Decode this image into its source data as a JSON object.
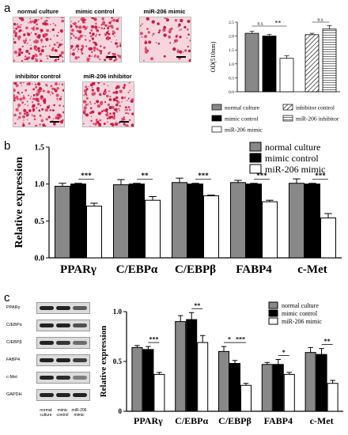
{
  "panel_a": {
    "letter": "a",
    "images": [
      {
        "label": "normal culture"
      },
      {
        "label": "mimic control"
      },
      {
        "label": "miR-206 mimic"
      },
      {
        "label": "inhibitor control"
      },
      {
        "label": "miR-206 inhibitor"
      }
    ],
    "legend": [
      {
        "label": "normal culture",
        "pattern": "gray"
      },
      {
        "label": "inhibitor control",
        "pattern": "diag"
      },
      {
        "label": "mimic control",
        "pattern": "black"
      },
      {
        "label": "miR-206 inhibitor",
        "pattern": "hlines"
      },
      {
        "label": "miR-206 mimic",
        "pattern": "white"
      }
    ]
  },
  "panel_b": {
    "letter": "b"
  },
  "panel_c": {
    "letter": "c",
    "blot_rows": [
      "PPARγ",
      "C/EBPα",
      "C/EBPβ",
      "FABP4",
      "c-Met",
      "GAPDH"
    ],
    "lanes": [
      "normal culture",
      "mimic control",
      "miR-206 mimic"
    ]
  },
  "colors": {
    "gray": "#888888",
    "black": "#000000",
    "white": "#ffffff"
  },
  "chart_data": [
    {
      "type": "bar",
      "panel": "a",
      "categories": [
        "normal culture",
        "mimic control",
        "miR-206 mimic",
        "inhibitor control",
        "miR-206 inhibitor"
      ],
      "values": [
        2.1,
        2.0,
        1.2,
        2.05,
        2.25
      ],
      "errors": [
        0.07,
        0.06,
        0.09,
        0.05,
        0.12
      ],
      "ylabel": "OD(510nm)",
      "ylim": [
        0,
        2.5
      ],
      "yticks": [
        "0.0",
        "0.5",
        "1.0",
        "1.5",
        "2.0",
        "2.5"
      ],
      "annotations": [
        {
          "text": "n.s."
        },
        {
          "text": "**"
        },
        {
          "text": "n.s."
        }
      ]
    },
    {
      "type": "bar",
      "panel": "b",
      "categories": [
        "PPARγ",
        "C/EBPα",
        "C/EBPβ",
        "FABP4",
        "c-Met"
      ],
      "series": [
        {
          "name": "normal culture",
          "values": [
            0.97,
            0.99,
            1.02,
            1.02,
            1.01
          ],
          "errors": [
            0.04,
            0.07,
            0.06,
            0.03,
            0.06
          ]
        },
        {
          "name": "mimic control",
          "values": [
            1.0,
            1.0,
            1.0,
            1.0,
            1.0
          ],
          "errors": [
            0.01,
            0.01,
            0.01,
            0.01,
            0.01
          ]
        },
        {
          "name": "miR-206 mimic",
          "values": [
            0.7,
            0.78,
            0.84,
            0.76,
            0.54
          ],
          "errors": [
            0.04,
            0.05,
            0.01,
            0.02,
            0.06
          ]
        }
      ],
      "ylabel": "Relative expression",
      "ylim": [
        0,
        1.5
      ],
      "yticks": [
        "0.0",
        "0.5",
        "1.0",
        "1.5"
      ],
      "annotations": [
        "***",
        "**",
        "***",
        "***",
        "***"
      ]
    },
    {
      "type": "bar",
      "panel": "c",
      "categories": [
        "PPARγ",
        "C/EBPα",
        "C/EBPβ",
        "FABP4",
        "c-Met"
      ],
      "series": [
        {
          "name": "normal culture",
          "values": [
            0.64,
            0.9,
            0.6,
            0.47,
            0.59
          ],
          "errors": [
            0.02,
            0.06,
            0.05,
            0.02,
            0.05
          ]
        },
        {
          "name": "mimic control",
          "values": [
            0.62,
            0.92,
            0.48,
            0.47,
            0.57
          ],
          "errors": [
            0.03,
            0.07,
            0.03,
            0.05,
            0.06
          ]
        },
        {
          "name": "miR-206 mimic",
          "values": [
            0.37,
            0.69,
            0.26,
            0.37,
            0.28
          ],
          "errors": [
            0.02,
            0.07,
            0.02,
            0.02,
            0.03
          ]
        }
      ],
      "ylabel": "Relative expression",
      "ylim": [
        0,
        1.0
      ],
      "yticks": [
        "0",
        "0.5",
        "1.0"
      ],
      "annotations": [
        [
          "***"
        ],
        [
          "**"
        ],
        [
          "*",
          "***"
        ],
        [
          "*"
        ],
        [
          "**"
        ]
      ]
    }
  ]
}
